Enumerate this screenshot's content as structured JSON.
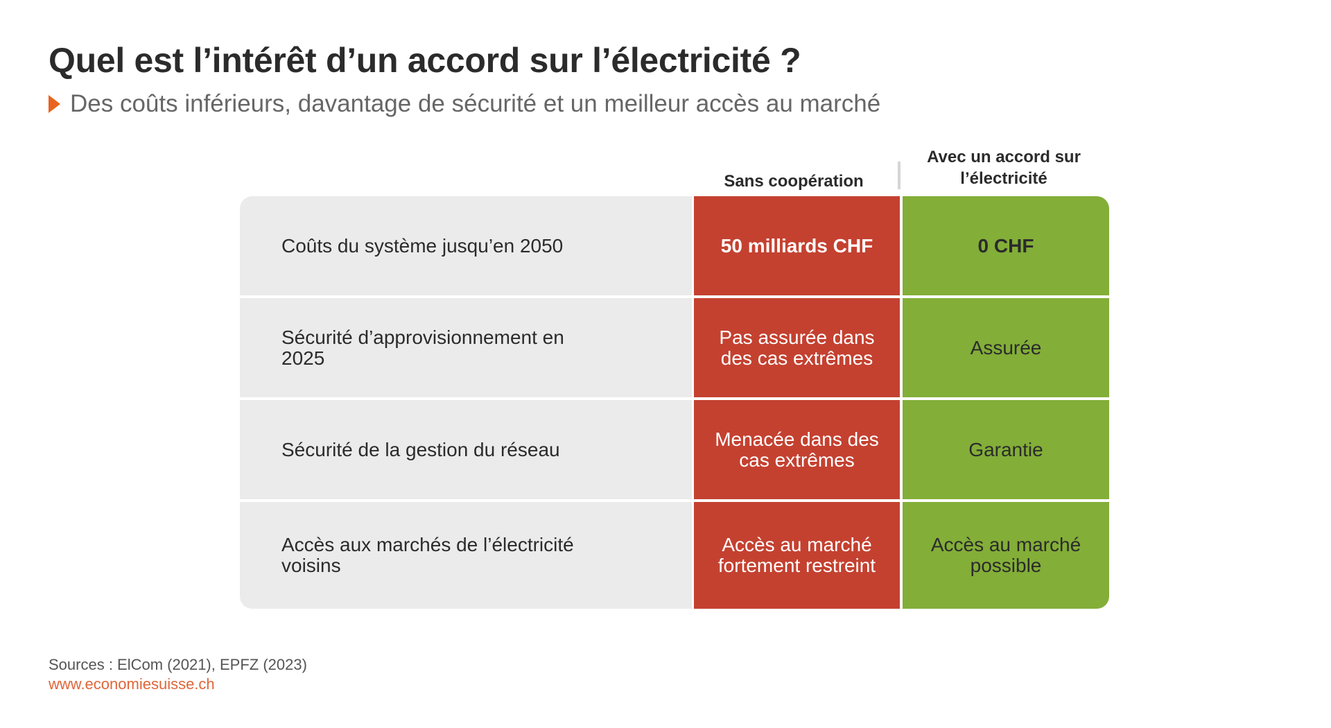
{
  "title": "Quel est l’intérêt d’un accord sur l’électricité ?",
  "subtitle": "Des coûts inférieurs, davantage de sécurité et un meilleur accès au marché",
  "colors": {
    "sans_cooperation": "#c44130",
    "avec_accord": "#83ae38",
    "label_background": "#ebebeb",
    "accent": "#e8641e"
  },
  "chart_data": {
    "type": "table",
    "columns": [
      "",
      "Sans coopération",
      "Avec un accord sur l’électricité"
    ],
    "rows": [
      {
        "label": "Coûts du système jusqu’en 2050",
        "sans": "50 milliards CHF",
        "avec": "0 CHF"
      },
      {
        "label": "Sécurité d’approvisionnement en 2025",
        "sans": "Pas assurée dans des cas extrêmes",
        "avec": "Assurée"
      },
      {
        "label": "Sécurité de la gestion du réseau",
        "sans": "Menacée dans des cas extrêmes",
        "avec": "Garantie"
      },
      {
        "label": "Accès aux marchés de l’électricité voisins",
        "sans": "Accès au marché fortement restreint",
        "avec": "Accès au marché possible"
      }
    ]
  },
  "footer": {
    "sources": "Sources : ElCom (2021), EPFZ (2023)",
    "url": "www.economiesuisse.ch"
  }
}
